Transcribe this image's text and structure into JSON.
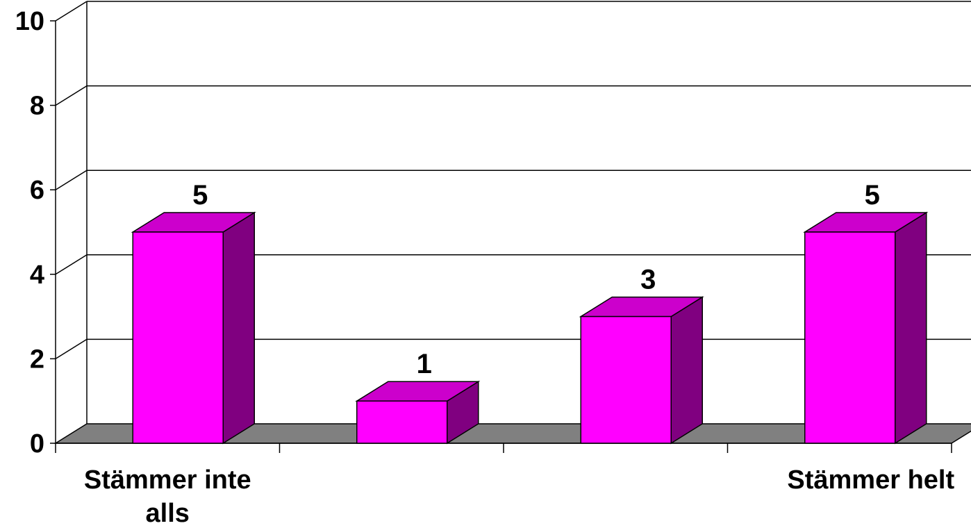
{
  "chart_data": {
    "type": "bar",
    "categories": [
      "Stämmer inte alls",
      "",
      "",
      "Stämmer helt"
    ],
    "category_label_lines": [
      [
        "Stämmer inte",
        "alls"
      ],
      [],
      [],
      [
        "Stämmer helt"
      ]
    ],
    "values": [
      5,
      1,
      3,
      5
    ],
    "data_labels": [
      "5",
      "1",
      "3",
      "5"
    ],
    "title": "",
    "xlabel": "",
    "ylabel": "",
    "ylim": [
      0,
      10
    ],
    "yticks": [
      0,
      2,
      4,
      6,
      8,
      10
    ],
    "ytick_labels": [
      "0",
      "2",
      "4",
      "6",
      "8",
      "10"
    ],
    "grid": true,
    "legend": "none",
    "style": "3d",
    "colors": {
      "bar_front": "#FF00FF",
      "bar_top": "#CC00CC",
      "bar_side": "#800080",
      "floor": "#808080",
      "background": "#FFFFFF",
      "gridline": "#000000"
    }
  }
}
